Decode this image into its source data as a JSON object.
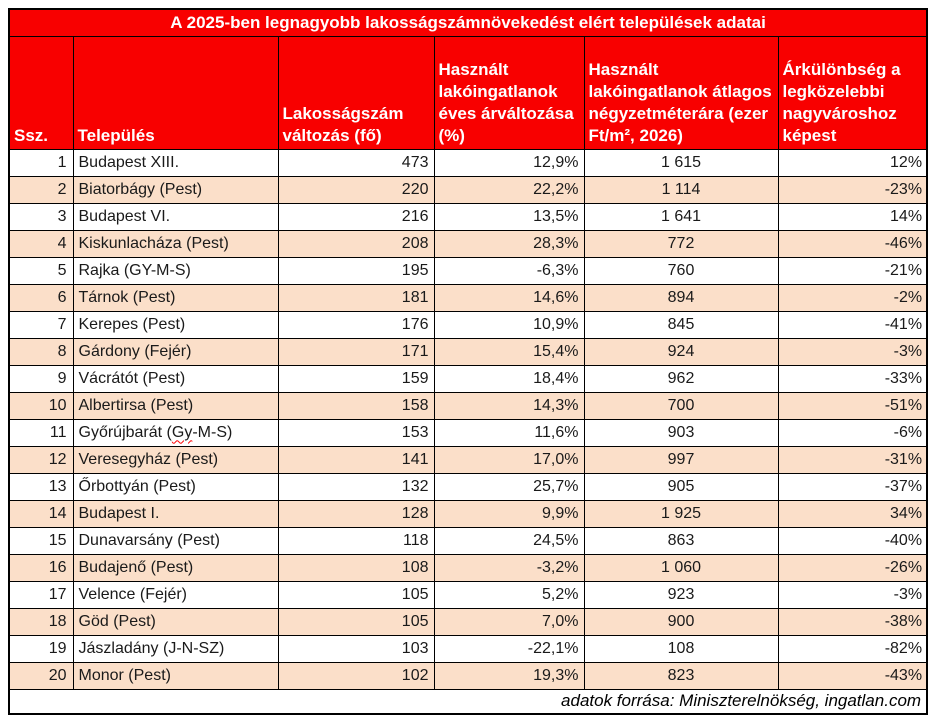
{
  "chart_data": {
    "type": "table",
    "title": "A 2025-ben legnagyobb lakosságszámnövekedést elért települések adatai",
    "columns": [
      "Ssz.",
      "Település",
      "Lakosságszám változás (fő)",
      "Használt lakóingatlanok éves árváltozása (%)",
      "Használt lakóingatlanok átlagos négyzetméterára (ezer Ft/m², 2026)",
      "Árkülönbség a legközelebbi nagyvároshoz képest"
    ],
    "rows": [
      {
        "rank": "1",
        "name": "Budapest XIII.",
        "pop_change": "473",
        "price_change": "12,9%",
        "sqm_price": "1 615",
        "price_diff": "12%"
      },
      {
        "rank": "2",
        "name": "Biatorbágy (Pest)",
        "pop_change": "220",
        "price_change": "22,2%",
        "sqm_price": "1 114",
        "price_diff": "-23%"
      },
      {
        "rank": "3",
        "name": "Budapest VI.",
        "pop_change": "216",
        "price_change": "13,5%",
        "sqm_price": "1 641",
        "price_diff": "14%"
      },
      {
        "rank": "4",
        "name": "Kiskunlacháza (Pest)",
        "pop_change": "208",
        "price_change": "28,3%",
        "sqm_price": "772",
        "price_diff": "-46%"
      },
      {
        "rank": "5",
        "name": "Rajka (GY-M-S)",
        "pop_change": "195",
        "price_change": "-6,3%",
        "sqm_price": "760",
        "price_diff": "-21%"
      },
      {
        "rank": "6",
        "name": "Tárnok (Pest)",
        "pop_change": "181",
        "price_change": "14,6%",
        "sqm_price": "894",
        "price_diff": "-2%"
      },
      {
        "rank": "7",
        "name": "Kerepes (Pest)",
        "pop_change": "176",
        "price_change": "10,9%",
        "sqm_price": "845",
        "price_diff": "-41%"
      },
      {
        "rank": "8",
        "name": "Gárdony (Fejér)",
        "pop_change": "171",
        "price_change": "15,4%",
        "sqm_price": "924",
        "price_diff": "-3%"
      },
      {
        "rank": "9",
        "name": "Vácrátót (Pest)",
        "pop_change": "159",
        "price_change": "18,4%",
        "sqm_price": "962",
        "price_diff": "-33%"
      },
      {
        "rank": "10",
        "name": "Albertirsa (Pest)",
        "pop_change": "158",
        "price_change": "14,3%",
        "sqm_price": "700",
        "price_diff": "-51%"
      },
      {
        "rank": "11",
        "name": "Győrújbarát (Gy-M-S)",
        "name_parts": [
          "Győrújbarát (",
          "Gy",
          "-M-S)"
        ],
        "pop_change": "153",
        "price_change": "11,6%",
        "sqm_price": "903",
        "price_diff": "-6%"
      },
      {
        "rank": "12",
        "name": "Veresegyház (Pest)",
        "pop_change": "141",
        "price_change": "17,0%",
        "sqm_price": "997",
        "price_diff": "-31%"
      },
      {
        "rank": "13",
        "name": "Őrbottyán (Pest)",
        "pop_change": "132",
        "price_change": "25,7%",
        "sqm_price": "905",
        "price_diff": "-37%"
      },
      {
        "rank": "14",
        "name": "Budapest I.",
        "pop_change": "128",
        "price_change": "9,9%",
        "sqm_price": "1 925",
        "price_diff": "34%"
      },
      {
        "rank": "15",
        "name": "Dunavarsány (Pest)",
        "pop_change": "118",
        "price_change": "24,5%",
        "sqm_price": "863",
        "price_diff": "-40%"
      },
      {
        "rank": "16",
        "name": "Budajenő (Pest)",
        "pop_change": "108",
        "price_change": "-3,2%",
        "sqm_price": "1 060",
        "price_diff": "-26%"
      },
      {
        "rank": "17",
        "name": "Velence (Fejér)",
        "pop_change": "105",
        "price_change": "5,2%",
        "sqm_price": "923",
        "price_diff": "-3%"
      },
      {
        "rank": "18",
        "name": "Göd (Pest)",
        "pop_change": "105",
        "price_change": "7,0%",
        "sqm_price": "900",
        "price_diff": "-38%"
      },
      {
        "rank": "19",
        "name": "Jászladány (J-N-SZ)",
        "pop_change": "103",
        "price_change": "-22,1%",
        "sqm_price": "108",
        "price_diff": "-82%"
      },
      {
        "rank": "20",
        "name": "Monor (Pest)",
        "pop_change": "102",
        "price_change": "19,3%",
        "sqm_price": "823",
        "price_diff": "-43%"
      }
    ],
    "footer": "adatok forrása: Miniszterelnökség, ingatlan.com",
    "layout": {
      "header_background": "#f80000",
      "header_text_color": "#ffffff",
      "alt_row_background": "#fbdfc9",
      "border_color": "#000000",
      "alternating_rows": "even rows shaded"
    }
  }
}
